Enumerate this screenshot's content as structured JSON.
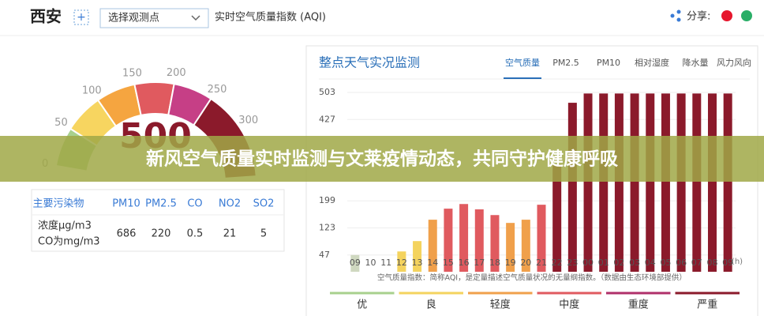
{
  "header": {
    "city": "西安",
    "add": "+",
    "station_select": "选择观测点",
    "index_title": "实时空气质量指数 (AQI)",
    "share": "分享:"
  },
  "gauge": {
    "ticks": [
      0,
      50,
      100,
      150,
      200,
      250,
      300
    ],
    "value": "500"
  },
  "pollutant_table": {
    "header": [
      "主要污染物",
      "PM10",
      "PM2.5",
      "CO",
      "NO2",
      "SO2"
    ],
    "row_label": [
      "浓度μg/m3",
      "CO为mg/m3"
    ],
    "values": [
      686,
      220,
      0.5,
      21,
      5
    ]
  },
  "panel": {
    "title": "整点天气实况监测",
    "tabs": [
      "空气质量",
      "PM2.5",
      "PM10",
      "相对湿度",
      "降水量",
      "风力风向"
    ]
  },
  "chart_data": {
    "type": "bar",
    "categories": [
      "09",
      "10",
      "11",
      "12",
      "13",
      "14",
      "15",
      "16",
      "17",
      "18",
      "19",
      "20",
      "21",
      "22",
      "23",
      "00",
      "01",
      "02",
      "03",
      "04",
      "05",
      "06",
      "07",
      "08",
      "09"
    ],
    "values": [
      47,
      null,
      null,
      57,
      86,
      146,
      177,
      190,
      175,
      159,
      137,
      146,
      188,
      301,
      474,
      500,
      500,
      500,
      500,
      500,
      500,
      500,
      500,
      500,
      500
    ],
    "colors": [
      "#cfd8c0",
      "#f4d35e",
      "#f4d35e",
      "#f4d35e",
      "#f4d35e",
      "#f0a04b",
      "#e05a5f",
      "#e05a5f",
      "#e05a5f",
      "#e05a5f",
      "#f0a04b",
      "#f0a04b",
      "#e05a5f",
      "#8b1a2b",
      "#8b1a2b",
      "#8b1a2b",
      "#8b1a2b",
      "#8b1a2b",
      "#8b1a2b",
      "#8b1a2b",
      "#8b1a2b",
      "#8b1a2b",
      "#8b1a2b",
      "#8b1a2b",
      "#8b1a2b"
    ],
    "ylim": [
      0,
      503
    ],
    "yticks": [
      47,
      123,
      199,
      427,
      503
    ],
    "grid": true,
    "x_unit": "(h)",
    "note": "空气质量指数：简称AQI，是定量描述空气质量状况的无量纲指数。（数据由生态环境部提供）"
  },
  "legend": [
    {
      "name": "优",
      "color": "#a8d08d"
    },
    {
      "name": "良",
      "color": "#f4d35e"
    },
    {
      "name": "轻度",
      "color": "#f0a04b"
    },
    {
      "name": "中度",
      "color": "#e05a5f"
    },
    {
      "name": "重度",
      "color": "#b0306a"
    },
    {
      "name": "严重",
      "color": "#8b1a2b"
    }
  ],
  "banner": "新风空气质量实时监测与文莱疫情动态，共同守护健康呼吸"
}
